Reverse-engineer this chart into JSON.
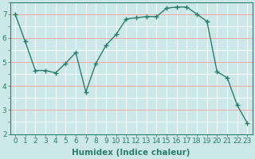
{
  "x": [
    0,
    1,
    2,
    3,
    4,
    5,
    6,
    7,
    8,
    9,
    10,
    11,
    12,
    13,
    14,
    15,
    16,
    17,
    18,
    19,
    20,
    21,
    22,
    23
  ],
  "y": [
    7.0,
    5.85,
    4.65,
    4.65,
    4.55,
    4.95,
    5.4,
    3.75,
    4.95,
    5.7,
    6.15,
    6.8,
    6.85,
    6.9,
    6.9,
    7.25,
    7.3,
    7.3,
    7.0,
    6.7,
    4.6,
    4.35,
    3.2,
    2.45
  ],
  "line_color": "#2d7d6e",
  "marker": "+",
  "marker_size": 4,
  "bg_color": "#cce8e8",
  "grid_color_major": "#ff9999",
  "grid_color_minor": "#ffffff",
  "xlabel": "Humidex (Indice chaleur)",
  "ylim": [
    2.0,
    7.5
  ],
  "xlim": [
    -0.5,
    23.5
  ],
  "yticks": [
    2,
    3,
    4,
    5,
    6,
    7
  ],
  "xticks": [
    0,
    1,
    2,
    3,
    4,
    5,
    6,
    7,
    8,
    9,
    10,
    11,
    12,
    13,
    14,
    15,
    16,
    17,
    18,
    19,
    20,
    21,
    22,
    23
  ],
  "tick_color": "#2d7d6e",
  "label_color": "#2d7d6e",
  "font_size": 6.5,
  "xlabel_fontsize": 7.5,
  "linewidth": 1.0,
  "markeredgewidth": 1.0
}
